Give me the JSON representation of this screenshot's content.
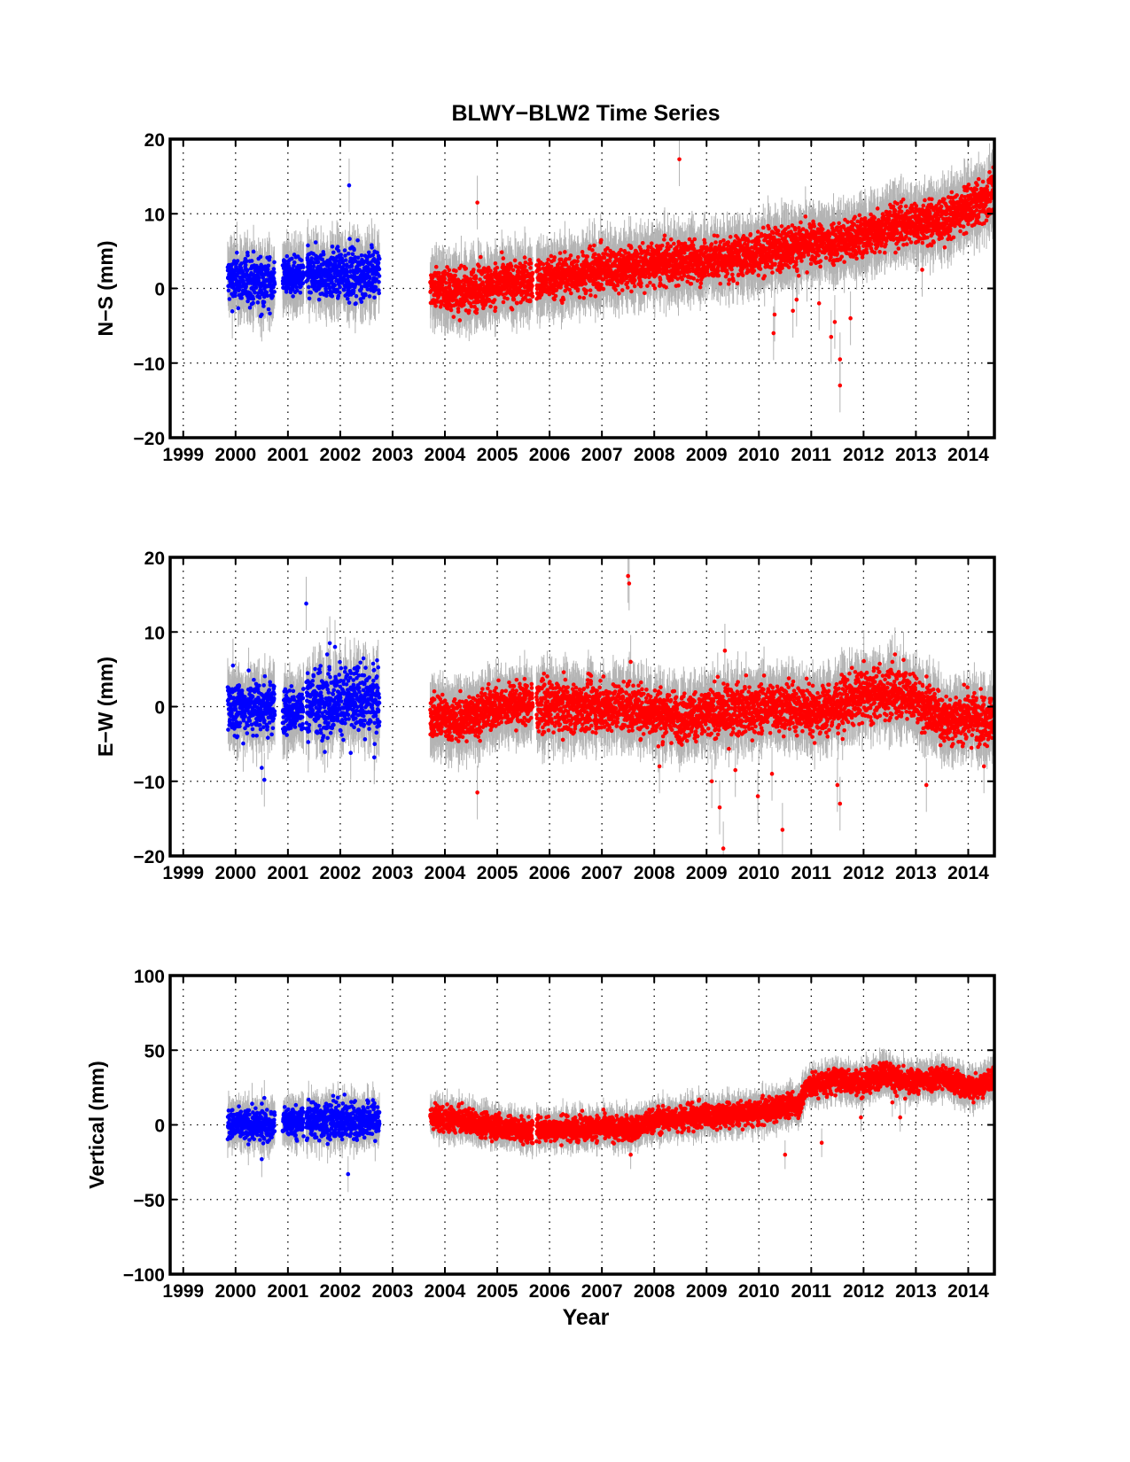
{
  "figure": {
    "title": "BLWY−BLW2 Time Series",
    "xlabel": "Year"
  },
  "chart_data": [
    {
      "type": "scatter",
      "ylabel": "N−S (mm)",
      "xlim": [
        1998.75,
        2014.5
      ],
      "ylim": [
        -20,
        20
      ],
      "xticks": [
        1999,
        2000,
        2001,
        2002,
        2003,
        2004,
        2005,
        2006,
        2007,
        2008,
        2009,
        2010,
        2011,
        2012,
        2013,
        2014
      ],
      "xticklabels": [
        "1999",
        "2000",
        "2001",
        "2002",
        "2003",
        "2004",
        "2005",
        "2006",
        "2007",
        "2008",
        "2009",
        "2010",
        "2011",
        "2012",
        "2013",
        "2014"
      ],
      "yticks": [
        -20,
        -10,
        0,
        10,
        20
      ],
      "yticklabels": [
        "−20",
        "−10",
        "0",
        "10",
        "20"
      ],
      "grid": true,
      "error_bars": true,
      "series": [
        {
          "color": "#0000ff",
          "segments": [
            {
              "x_range": [
                1999.85,
                2000.75
              ],
              "trend": [
                [
                  1999.85,
                  1.2
                ],
                [
                  2000.75,
                  0.8
                ]
              ],
              "scatter": 1.6,
              "error": 3.0
            },
            {
              "x_range": [
                2000.9,
                2001.3
              ],
              "trend": [
                [
                  2000.9,
                  1.8
                ],
                [
                  2001.3,
                  1.6
                ]
              ],
              "scatter": 1.2,
              "error": 3.0
            },
            {
              "x_range": [
                2001.35,
                2002.75
              ],
              "trend": [
                [
                  2001.35,
                  1.8
                ],
                [
                  2002.75,
                  2.0
                ]
              ],
              "scatter": 1.6,
              "error": 3.0
            }
          ],
          "outliers": [
            [
              2002.17,
              13.8
            ],
            [
              2000.5,
              -3.5
            ],
            [
              2002.6,
              5.8
            ]
          ]
        },
        {
          "color": "#ff0000",
          "segments": [
            {
              "x_range": [
                2003.72,
                2005.68
              ],
              "trend": [
                [
                  2003.72,
                  0.5
                ],
                [
                  2004.2,
                  -0.5
                ],
                [
                  2005.0,
                  0.5
                ],
                [
                  2005.68,
                  1.0
                ]
              ],
              "scatter": 1.4,
              "error": 3.0
            },
            {
              "x_range": [
                2005.75,
                2014.48
              ],
              "trend": [
                [
                  2005.75,
                  1.0
                ],
                [
                  2007.0,
                  2.5
                ],
                [
                  2008.5,
                  3.5
                ],
                [
                  2009.5,
                  4.0
                ],
                [
                  2010.4,
                  5.5
                ],
                [
                  2011.2,
                  6.0
                ],
                [
                  2011.8,
                  6.5
                ],
                [
                  2012.5,
                  8.5
                ],
                [
                  2013.5,
                  9.0
                ],
                [
                  2014.48,
                  12.5
                ]
              ],
              "scatter": 1.4,
              "error": 3.0
            }
          ],
          "outliers": [
            [
              2004.62,
              11.5
            ],
            [
              2008.48,
              17.3
            ],
            [
              2011.55,
              -13.0
            ],
            [
              2011.55,
              -9.5
            ],
            [
              2011.38,
              -6.5
            ],
            [
              2010.28,
              -6.0
            ],
            [
              2010.3,
              -3.5
            ],
            [
              2010.72,
              -1.5
            ],
            [
              2011.15,
              -2.0
            ],
            [
              2011.45,
              -4.5
            ],
            [
              2011.75,
              -4.0
            ],
            [
              2010.65,
              -3.0
            ],
            [
              2013.12,
              2.5
            ]
          ]
        }
      ]
    },
    {
      "type": "scatter",
      "ylabel": "E−W (mm)",
      "xlim": [
        1998.75,
        2014.5
      ],
      "ylim": [
        -20,
        20
      ],
      "xticks": [
        1999,
        2000,
        2001,
        2002,
        2003,
        2004,
        2005,
        2006,
        2007,
        2008,
        2009,
        2010,
        2011,
        2012,
        2013,
        2014
      ],
      "xticklabels": [
        "1999",
        "2000",
        "2001",
        "2002",
        "2003",
        "2004",
        "2005",
        "2006",
        "2007",
        "2008",
        "2009",
        "2010",
        "2011",
        "2012",
        "2013",
        "2014"
      ],
      "yticks": [
        -20,
        -10,
        0,
        10,
        20
      ],
      "yticklabels": [
        "−20",
        "−10",
        "0",
        "10",
        "20"
      ],
      "grid": true,
      "error_bars": true,
      "series": [
        {
          "color": "#0000ff",
          "segments": [
            {
              "x_range": [
                1999.85,
                2000.75
              ],
              "trend": [
                [
                  1999.85,
                  0.0
                ],
                [
                  2000.75,
                  0.0
                ]
              ],
              "scatter": 1.8,
              "error": 3.0
            },
            {
              "x_range": [
                2000.9,
                2001.3
              ],
              "trend": [
                [
                  2000.9,
                  -0.5
                ],
                [
                  2001.3,
                  -0.5
                ]
              ],
              "scatter": 1.5,
              "error": 3.0
            },
            {
              "x_range": [
                2001.35,
                2002.75
              ],
              "trend": [
                [
                  2001.35,
                  0.5
                ],
                [
                  2002.75,
                  1.0
                ]
              ],
              "scatter": 2.2,
              "error": 3.0
            }
          ],
          "outliers": [
            [
              2001.35,
              13.8
            ],
            [
              2001.8,
              8.5
            ],
            [
              2001.75,
              7.0
            ],
            [
              2001.9,
              8.0
            ],
            [
              2000.5,
              -8.2
            ],
            [
              2000.55,
              -9.8
            ],
            [
              2002.2,
              -6.2
            ],
            [
              2002.65,
              -6.8
            ],
            [
              1999.95,
              5.5
            ],
            [
              2001.6,
              5.0
            ]
          ]
        },
        {
          "color": "#ff0000",
          "segments": [
            {
              "x_range": [
                2003.72,
                2005.68
              ],
              "trend": [
                [
                  2003.72,
                  -1.0
                ],
                [
                  2004.2,
                  -2.0
                ],
                [
                  2005.0,
                  0.0
                ],
                [
                  2005.68,
                  0.5
                ]
              ],
              "scatter": 1.4,
              "error": 3.0
            },
            {
              "x_range": [
                2005.75,
                2014.48
              ],
              "trend": [
                [
                  2005.75,
                  0.0
                ],
                [
                  2007.5,
                  0.0
                ],
                [
                  2008.5,
                  -1.5
                ],
                [
                  2009.5,
                  -0.5
                ],
                [
                  2010.5,
                  0.0
                ],
                [
                  2011.2,
                  -0.5
                ],
                [
                  2012.0,
                  1.5
                ],
                [
                  2012.8,
                  2.0
                ],
                [
                  2013.5,
                  -1.5
                ],
                [
                  2014.48,
                  -1.5
                ]
              ],
              "scatter": 1.6,
              "error": 3.0
            }
          ],
          "outliers": [
            [
              2007.5,
              17.5
            ],
            [
              2007.52,
              16.5
            ],
            [
              2007.55,
              6.0
            ],
            [
              2004.62,
              -11.5
            ],
            [
              2009.1,
              -10.0
            ],
            [
              2009.25,
              -13.5
            ],
            [
              2009.32,
              -19.0
            ],
            [
              2009.35,
              7.5
            ],
            [
              2009.98,
              -12.0
            ],
            [
              2010.45,
              -16.5
            ],
            [
              2011.55,
              -13.0
            ],
            [
              2011.5,
              -10.5
            ],
            [
              2013.2,
              -10.5
            ],
            [
              2012.55,
              6.0
            ],
            [
              2012.6,
              7.0
            ],
            [
              2014.3,
              -8.0
            ],
            [
              2008.1,
              -8.0
            ],
            [
              2009.55,
              -8.5
            ],
            [
              2010.25,
              -9.0
            ]
          ]
        }
      ]
    },
    {
      "type": "scatter",
      "ylabel": "Vertical (mm)",
      "xlim": [
        1998.75,
        2014.5
      ],
      "ylim": [
        -100,
        100
      ],
      "xticks": [
        1999,
        2000,
        2001,
        2002,
        2003,
        2004,
        2005,
        2006,
        2007,
        2008,
        2009,
        2010,
        2011,
        2012,
        2013,
        2014
      ],
      "xticklabels": [
        "1999",
        "2000",
        "2001",
        "2002",
        "2003",
        "2004",
        "2005",
        "2006",
        "2007",
        "2008",
        "2009",
        "2010",
        "2011",
        "2012",
        "2013",
        "2014"
      ],
      "yticks": [
        -100,
        -50,
        0,
        50,
        100
      ],
      "yticklabels": [
        "−100",
        "−50",
        "0",
        "50",
        "100"
      ],
      "grid": true,
      "error_bars": true,
      "series": [
        {
          "color": "#0000ff",
          "segments": [
            {
              "x_range": [
                1999.85,
                2000.75
              ],
              "trend": [
                [
                  1999.85,
                  0.0
                ],
                [
                  2000.75,
                  0.0
                ]
              ],
              "scatter": 5.0,
              "error": 10.0
            },
            {
              "x_range": [
                2000.9,
                2001.3
              ],
              "trend": [
                [
                  2000.9,
                  2.0
                ],
                [
                  2001.3,
                  2.0
                ]
              ],
              "scatter": 5.0,
              "error": 10.0
            },
            {
              "x_range": [
                2001.35,
                2002.75
              ],
              "trend": [
                [
                  2001.35,
                  3.0
                ],
                [
                  2002.75,
                  3.0
                ]
              ],
              "scatter": 6.0,
              "error": 10.0
            }
          ],
          "outliers": [
            [
              2000.5,
              -23.0
            ],
            [
              2002.15,
              -33.0
            ],
            [
              2000.55,
              18.0
            ],
            [
              2001.45,
              15.0
            ]
          ]
        },
        {
          "color": "#ff0000",
          "segments": [
            {
              "x_range": [
                2003.72,
                2005.68
              ],
              "trend": [
                [
                  2003.72,
                  5.0
                ],
                [
                  2004.5,
                  2.0
                ],
                [
                  2005.68,
                  -5.0
                ]
              ],
              "scatter": 4.0,
              "error": 8.0
            },
            {
              "x_range": [
                2005.75,
                2014.48
              ],
              "trend": [
                [
                  2005.75,
                  -3.0
                ],
                [
                  2007.0,
                  -2.0
                ],
                [
                  2007.6,
                  -3.0
                ],
                [
                  2008.0,
                  3.0
                ],
                [
                  2009.0,
                  6.0
                ],
                [
                  2010.0,
                  8.0
                ],
                [
                  2010.8,
                  15.0
                ],
                [
                  2010.9,
                  25.0
                ],
                [
                  2011.5,
                  30.0
                ],
                [
                  2012.0,
                  28.0
                ],
                [
                  2012.4,
                  35.0
                ],
                [
                  2012.8,
                  28.0
                ],
                [
                  2013.5,
                  32.0
                ],
                [
                  2014.0,
                  25.0
                ],
                [
                  2014.48,
                  30.0
                ]
              ],
              "scatter": 4.0,
              "error": 8.0
            }
          ],
          "outliers": [
            [
              2007.55,
              -20.0
            ],
            [
              2010.5,
              -20.0
            ],
            [
              2011.2,
              -12.0
            ],
            [
              2011.95,
              5.0
            ],
            [
              2012.55,
              15.0
            ],
            [
              2014.1,
              15.0
            ],
            [
              2012.7,
              5.0
            ]
          ]
        }
      ]
    }
  ]
}
